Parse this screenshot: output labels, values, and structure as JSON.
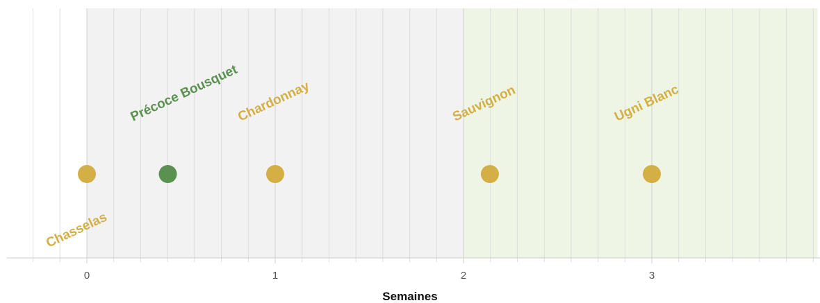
{
  "chart_data": {
    "type": "scatter",
    "xlabel": "Semaines",
    "xlim": [
      -0.42,
      3.88
    ],
    "xticks": [
      0,
      1,
      2,
      3
    ],
    "grid": true,
    "bands": [
      {
        "from": 0,
        "to": 2,
        "color": "#f2f2f2"
      },
      {
        "from": 2,
        "to": 3.88,
        "color": "#eef5e4"
      }
    ],
    "points": [
      {
        "label": "Chasselas",
        "x": 0,
        "color": "#d4af45",
        "label_side": "below"
      },
      {
        "label": "Précoce Bousquet",
        "x": 0.43,
        "color": "#5b9150",
        "label_side": "above"
      },
      {
        "label": "Chardonnay",
        "x": 1,
        "color": "#d4af45",
        "label_side": "above"
      },
      {
        "label": "Sauvignon",
        "x": 2.14,
        "color": "#d4af45",
        "label_side": "above"
      },
      {
        "label": "Ugni Blanc",
        "x": 3,
        "color": "#d4af45",
        "label_side": "above"
      }
    ]
  }
}
